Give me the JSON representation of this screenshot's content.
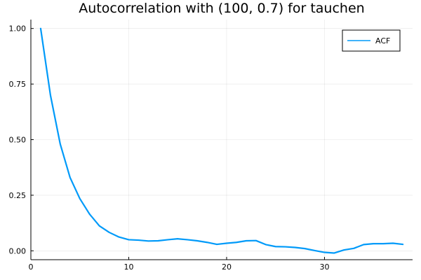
{
  "chart_data": {
    "type": "line",
    "title": "Autocorrelation with (100, 0.7) for tauchen",
    "xlabel": "",
    "ylabel": "",
    "xlim": [
      0,
      39
    ],
    "ylim": [
      -0.04,
      1.04
    ],
    "x_ticks": [
      0,
      10,
      20,
      30
    ],
    "x_tick_labels": [
      "0",
      "10",
      "20",
      "30"
    ],
    "y_ticks": [
      0,
      0.25,
      0.5,
      0.75,
      1.0
    ],
    "y_tick_labels": [
      "0.00",
      "0.25",
      "0.50",
      "0.75",
      "1.00"
    ],
    "grid": true,
    "legend_position": "top-right",
    "series": [
      {
        "name": "ACF",
        "color": "#009af9",
        "x": [
          1,
          2,
          3,
          4,
          5,
          6,
          7,
          8,
          9,
          10,
          11,
          12,
          13,
          14,
          15,
          16,
          17,
          18,
          19,
          20,
          21,
          22,
          23,
          24,
          25,
          26,
          27,
          28,
          29,
          30,
          31,
          32,
          33,
          34,
          35,
          36,
          37,
          38
        ],
        "y": [
          1.0,
          0.7,
          0.48,
          0.33,
          0.235,
          0.165,
          0.112,
          0.083,
          0.062,
          0.05,
          0.048,
          0.044,
          0.045,
          0.05,
          0.054,
          0.05,
          0.045,
          0.038,
          0.029,
          0.034,
          0.038,
          0.045,
          0.046,
          0.028,
          0.019,
          0.018,
          0.015,
          0.01,
          0.001,
          -0.007,
          -0.01,
          0.004,
          0.011,
          0.028,
          0.032,
          0.032,
          0.034,
          0.029
        ]
      }
    ]
  }
}
